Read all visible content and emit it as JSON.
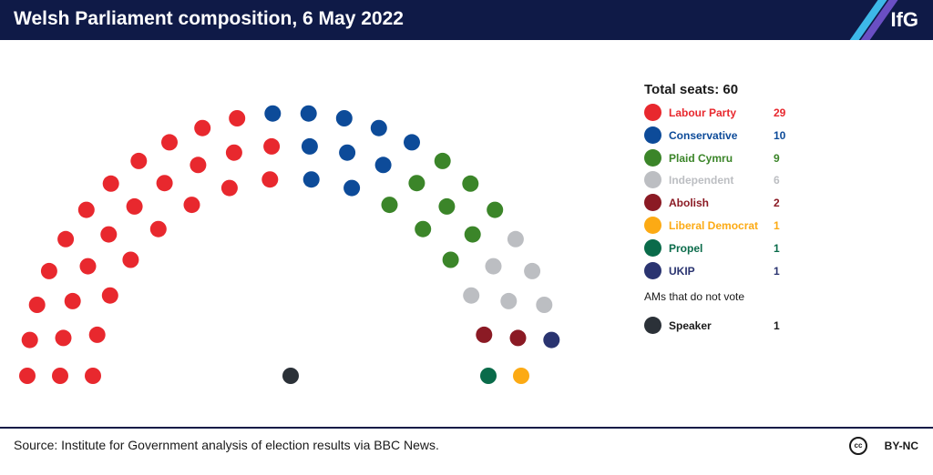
{
  "header": {
    "title": "Welsh Parliament composition, 6 May 2022",
    "logo": "IfG"
  },
  "footer": {
    "source": "Source: Institute for Government analysis of election results via BBC News.",
    "license_icon_text": "cc",
    "license": "BY-NC"
  },
  "colors": {
    "header_bg": "#0f1a47",
    "stripe_light": "#3db8e8",
    "stripe_purple": "#6a4fc4"
  },
  "chart_data": {
    "type": "parliament",
    "title": "Welsh Parliament composition, 6 May 2022",
    "total_label": "Total seats: 60",
    "total": 60,
    "parties": [
      {
        "name": "Labour Party",
        "seats": 29,
        "color": "#e8282e"
      },
      {
        "name": "Conservative",
        "seats": 10,
        "color": "#0d4b99"
      },
      {
        "name": "Plaid Cymru",
        "seats": 9,
        "color": "#3b8529"
      },
      {
        "name": "Independent",
        "seats": 6,
        "color": "#bcbec2"
      },
      {
        "name": "Abolish",
        "seats": 2,
        "color": "#8b1a24"
      },
      {
        "name": "Liberal Democrat",
        "seats": 1,
        "color": "#fcaa14"
      },
      {
        "name": "Propel",
        "seats": 1,
        "color": "#0a6b4a"
      },
      {
        "name": "UKIP",
        "seats": 1,
        "color": "#2a3470"
      }
    ],
    "non_voting_label": "AMs that do not vote",
    "non_voting": [
      {
        "name": "Speaker",
        "seats": 1,
        "color": "#2b3138"
      }
    ]
  }
}
